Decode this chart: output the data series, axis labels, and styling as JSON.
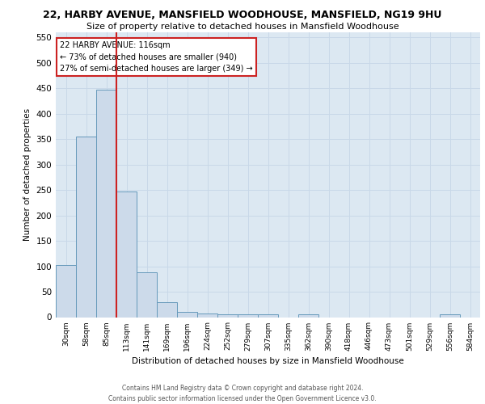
{
  "title": "22, HARBY AVENUE, MANSFIELD WOODHOUSE, MANSFIELD, NG19 9HU",
  "subtitle": "Size of property relative to detached houses in Mansfield Woodhouse",
  "xlabel": "Distribution of detached houses by size in Mansfield Woodhouse",
  "ylabel": "Number of detached properties",
  "categories": [
    "30sqm",
    "58sqm",
    "85sqm",
    "113sqm",
    "141sqm",
    "169sqm",
    "196sqm",
    "224sqm",
    "252sqm",
    "279sqm",
    "307sqm",
    "335sqm",
    "362sqm",
    "390sqm",
    "418sqm",
    "446sqm",
    "473sqm",
    "501sqm",
    "529sqm",
    "556sqm",
    "584sqm"
  ],
  "values": [
    103,
    355,
    447,
    247,
    88,
    30,
    10,
    7,
    5,
    5,
    5,
    0,
    5,
    0,
    0,
    0,
    0,
    0,
    0,
    5,
    0
  ],
  "bar_color": "#ccdaea",
  "bar_edge_color": "#6699bb",
  "grid_color": "#c8d8e8",
  "bg_color": "#dce8f2",
  "vline_color": "#cc2222",
  "annotation_text": "22 HARBY AVENUE: 116sqm\n← 73% of detached houses are smaller (940)\n27% of semi-detached houses are larger (349) →",
  "annotation_box_color": "#ffffff",
  "annotation_box_edge_color": "#cc2222",
  "footer": "Contains HM Land Registry data © Crown copyright and database right 2024.\nContains public sector information licensed under the Open Government Licence v3.0.",
  "ylim": [
    0,
    560
  ],
  "yticks": [
    0,
    50,
    100,
    150,
    200,
    250,
    300,
    350,
    400,
    450,
    500,
    550
  ],
  "title_fontsize": 9,
  "subtitle_fontsize": 8
}
